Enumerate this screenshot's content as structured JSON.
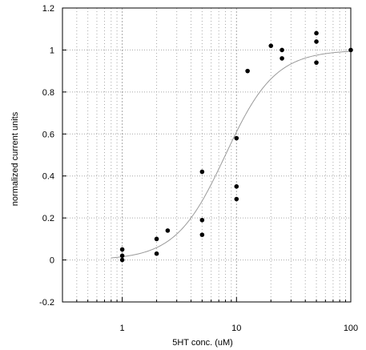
{
  "chart_data": {
    "type": "scatter",
    "xscale": "log",
    "xlim": [
      0.3,
      100
    ],
    "ylim": [
      -0.2,
      1.2
    ],
    "xlabel": "5HT conc. (uM)",
    "ylabel": "normalized current units",
    "x_tick_labels": [
      "1",
      "10",
      "100"
    ],
    "y_tick_labels": [
      "-0.2",
      "0",
      "0.2",
      "0.4",
      "0.6",
      "0.8",
      "1",
      "1.2"
    ],
    "grid": true,
    "series": [
      {
        "marker": "circle",
        "color": "#000000",
        "points": [
          {
            "x": 1,
            "y": 0.05
          },
          {
            "x": 1,
            "y": 0.02
          },
          {
            "x": 1,
            "y": 0.0
          },
          {
            "x": 2,
            "y": 0.1
          },
          {
            "x": 2,
            "y": 0.03
          },
          {
            "x": 2.5,
            "y": 0.14
          },
          {
            "x": 5,
            "y": 0.42
          },
          {
            "x": 5,
            "y": 0.19
          },
          {
            "x": 5,
            "y": 0.12
          },
          {
            "x": 10,
            "y": 0.58
          },
          {
            "x": 10,
            "y": 0.35
          },
          {
            "x": 10,
            "y": 0.29
          },
          {
            "x": 12.5,
            "y": 0.9
          },
          {
            "x": 20,
            "y": 1.02
          },
          {
            "x": 25,
            "y": 1.0
          },
          {
            "x": 25,
            "y": 0.96
          },
          {
            "x": 50,
            "y": 1.08
          },
          {
            "x": 50,
            "y": 1.04
          },
          {
            "x": 50,
            "y": 0.94
          },
          {
            "x": 100,
            "y": 1.0
          }
        ]
      }
    ],
    "fit_curve": {
      "type": "hill",
      "bottom": 0.0,
      "top": 1.0,
      "ec50": 8.0,
      "hill_slope": 2.0
    }
  }
}
